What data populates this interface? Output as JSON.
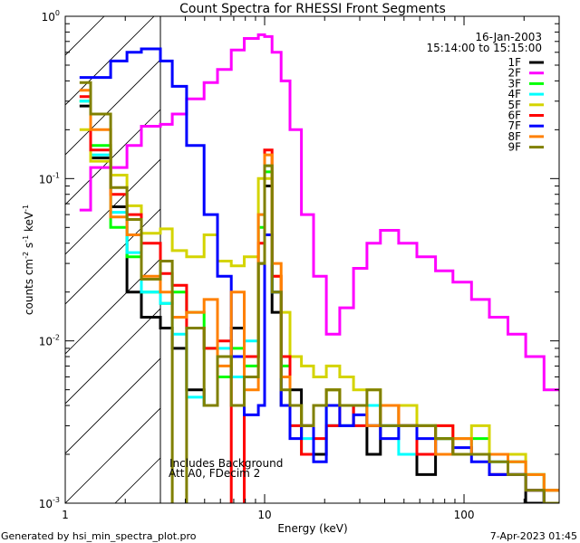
{
  "chart_data": {
    "type": "line",
    "title": "Count Spectra for RHESSI Front Segments",
    "xlabel": "Energy (keV)",
    "ylabel_parts": [
      "counts cm",
      "-2",
      " s",
      "-1",
      " keV",
      "-1"
    ],
    "xscale": "log",
    "yscale": "log",
    "xlim": [
      1,
      300
    ],
    "ylim": [
      0.001,
      1
    ],
    "x_tick_labels": [
      {
        "value": 1,
        "label": "1"
      },
      {
        "value": 10,
        "label": "10"
      },
      {
        "value": 100,
        "label": "100"
      }
    ],
    "y_tick_labels": [
      {
        "value": 1,
        "base": "10",
        "exp": "0"
      },
      {
        "value": 0.1,
        "base": "10",
        "exp": "-1"
      },
      {
        "value": 0.01,
        "base": "10",
        "exp": "-2"
      },
      {
        "value": 0.001,
        "base": "10",
        "exp": "-3"
      }
    ],
    "shaded_region_keV": [
      1,
      3
    ],
    "legend_placement": "top-right",
    "legend_header": [
      "16-Jan-2003",
      "15:14:00 to 15:15:00"
    ],
    "annotations": [
      "Includes Background",
      "Att A0, FDecim 2"
    ],
    "energy_bin_edges": [
      1.18,
      1.34,
      1.69,
      2.04,
      2.41,
      3.0,
      3.44,
      4.06,
      4.97,
      5.8,
      6.8,
      7.9,
      9.3,
      10,
      10.9,
      12.1,
      13.4,
      15.3,
      17.6,
      20.4,
      23.8,
      27.9,
      32.6,
      38.1,
      47,
      58,
      72,
      88,
      109,
      134,
      166,
      204,
      252,
      300
    ],
    "series": [
      {
        "name": "1F",
        "color": "#000000",
        "values": [
          0.28,
          0.134,
          0.067,
          0.02,
          0.014,
          0.012,
          0.009,
          0.005,
          0.004,
          0.006,
          0.012,
          0.008,
          0.03,
          0.09,
          0.015,
          0.004,
          0.005,
          0.003,
          0.002,
          0.003,
          0.003,
          0.004,
          0.002,
          0.003,
          0.003,
          0.0015,
          0.0025,
          0.002,
          0.002,
          0.0015,
          0.0015,
          0.001,
          0.0012
        ]
      },
      {
        "name": "2F",
        "color": "#ff00ff",
        "values": [
          0.064,
          0.117,
          0.117,
          0.16,
          0.21,
          0.216,
          0.25,
          0.31,
          0.39,
          0.47,
          0.62,
          0.73,
          0.77,
          0.75,
          0.6,
          0.4,
          0.2,
          0.06,
          0.025,
          0.011,
          0.016,
          0.028,
          0.04,
          0.048,
          0.04,
          0.033,
          0.027,
          0.023,
          0.018,
          0.014,
          0.011,
          0.008,
          0.005
        ]
      },
      {
        "name": "3F",
        "color": "#00ff00",
        "values": [
          0.3,
          0.16,
          0.05,
          0.033,
          0.02,
          0.017,
          0.02,
          0.015,
          0.009,
          0.006,
          0.009,
          0.007,
          0.05,
          0.11,
          0.02,
          0.007,
          0.004,
          0.002,
          0.004,
          0.005,
          0.004,
          0.004,
          0.003,
          0.004,
          0.003,
          0.003,
          0.0025,
          0.002,
          0.0025,
          0.002,
          0.0018,
          0.0015,
          0.001
        ]
      },
      {
        "name": "4F",
        "color": "#00ffff",
        "values": [
          0.3,
          0.14,
          0.062,
          0.035,
          0.02,
          0.017,
          0.011,
          0.0045,
          0.004,
          0.009,
          0.006,
          0.01,
          0.06,
          0.12,
          0.02,
          0.006,
          0.003,
          0.0025,
          0.004,
          0.003,
          0.003,
          0.003,
          0.004,
          0.003,
          0.002,
          0.003,
          0.002,
          0.0025,
          0.002,
          0.0018,
          0.0015,
          0.0015,
          0.001
        ]
      },
      {
        "name": "5F",
        "color": "#d4d400",
        "values": [
          0.2,
          0.128,
          0.105,
          0.068,
          0.046,
          0.049,
          0.036,
          0.033,
          0.045,
          0.031,
          0.029,
          0.033,
          0.1,
          0.1,
          0.025,
          0.015,
          0.008,
          0.007,
          0.006,
          0.007,
          0.006,
          0.005,
          0.005,
          0.004,
          0.004,
          0.003,
          0.003,
          0.0025,
          0.003,
          0.002,
          0.002,
          0.0015,
          0.0012
        ]
      },
      {
        "name": "6F",
        "color": "#ff0000",
        "values": [
          0.32,
          0.15,
          0.08,
          0.06,
          0.04,
          0.026,
          0.022,
          0.012,
          0.009,
          0.01,
          0.0008,
          0.008,
          0.04,
          0.15,
          0.025,
          0.008,
          0.003,
          0.002,
          0.0025,
          0.003,
          0.004,
          0.003,
          0.003,
          0.004,
          0.003,
          0.002,
          0.003,
          0.002,
          0.002,
          0.0015,
          0.0015,
          0.0012,
          0.001
        ]
      },
      {
        "name": "7F",
        "color": "#0000ff",
        "values": [
          0.42,
          0.42,
          0.53,
          0.6,
          0.63,
          0.53,
          0.37,
          0.16,
          0.06,
          0.025,
          0.008,
          0.0035,
          0.004,
          0.045,
          0.02,
          0.004,
          0.0025,
          0.003,
          0.0018,
          0.004,
          0.003,
          0.0035,
          0.003,
          0.0025,
          0.003,
          0.0025,
          0.002,
          0.0022,
          0.0018,
          0.0015,
          0.0015,
          0.0012,
          0.001
        ]
      },
      {
        "name": "8F",
        "color": "#ff8000",
        "values": [
          0.35,
          0.2,
          0.058,
          0.045,
          0.025,
          0.02,
          0.014,
          0.015,
          0.018,
          0.007,
          0.02,
          0.005,
          0.06,
          0.14,
          0.03,
          0.006,
          0.004,
          0.003,
          0.004,
          0.005,
          0.004,
          0.004,
          0.003,
          0.004,
          0.003,
          0.003,
          0.002,
          0.0025,
          0.002,
          0.002,
          0.0018,
          0.0015,
          0.0012
        ]
      },
      {
        "name": "9F",
        "color": "#808000",
        "values": [
          0.39,
          0.25,
          0.088,
          0.056,
          0.024,
          0.031,
          0.0009,
          0.012,
          0.004,
          0.008,
          0.004,
          0.006,
          0.03,
          0.12,
          0.02,
          0.005,
          0.004,
          0.003,
          0.004,
          0.005,
          0.004,
          0.004,
          0.005,
          0.003,
          0.003,
          0.003,
          0.0025,
          0.002,
          0.002,
          0.0018,
          0.0015,
          0.0012,
          0.001
        ]
      }
    ]
  },
  "footer": {
    "generated_by": "Generated by hsi_min_spectra_plot.pro",
    "timestamp": "7-Apr-2023 01:45"
  }
}
